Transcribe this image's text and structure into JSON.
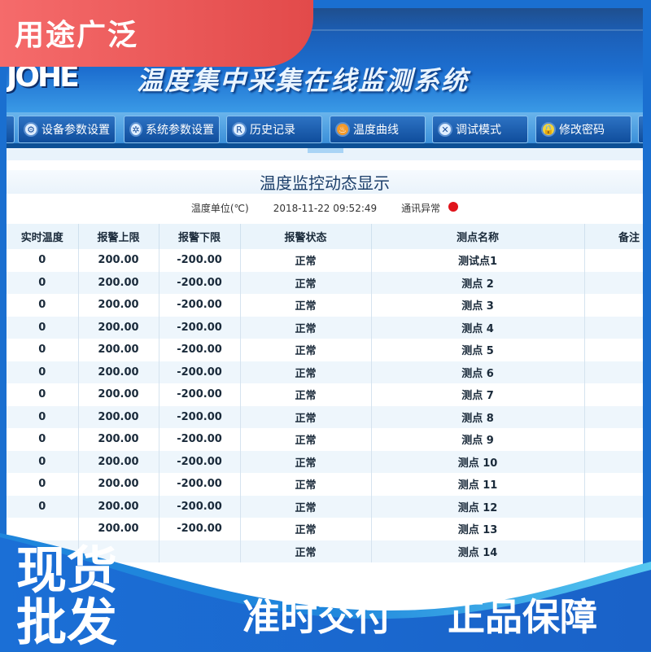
{
  "header": {
    "logo": "JOHE",
    "title": "温度集中采集在线监测系统"
  },
  "nav": [
    {
      "label": "设备参数设置",
      "icon": "gear-icon"
    },
    {
      "label": "系统参数设置",
      "icon": "settings-icon"
    },
    {
      "label": "历史记录",
      "icon": "registered-icon"
    },
    {
      "label": "温度曲线",
      "icon": "flame-icon"
    },
    {
      "label": "调试模式",
      "icon": "tools-icon"
    },
    {
      "label": "修改密码",
      "icon": "lock-icon"
    }
  ],
  "panel": {
    "title": "温度监控动态显示",
    "unit": "温度单位(℃)",
    "datetime": "2018-11-22 09:52:49",
    "comm_status": "通讯异常",
    "comm_color": "#e0131b"
  },
  "table": {
    "columns": [
      "实时温度",
      "报警上限",
      "报警下限",
      "报警状态",
      "测点名称",
      "备注"
    ],
    "rows": [
      [
        "0",
        "200.00",
        "-200.00",
        "正常",
        "测试点1",
        ""
      ],
      [
        "0",
        "200.00",
        "-200.00",
        "正常",
        "测点 2",
        ""
      ],
      [
        "0",
        "200.00",
        "-200.00",
        "正常",
        "测点 3",
        ""
      ],
      [
        "0",
        "200.00",
        "-200.00",
        "正常",
        "测点 4",
        ""
      ],
      [
        "0",
        "200.00",
        "-200.00",
        "正常",
        "测点 5",
        ""
      ],
      [
        "0",
        "200.00",
        "-200.00",
        "正常",
        "测点 6",
        ""
      ],
      [
        "0",
        "200.00",
        "-200.00",
        "正常",
        "测点 7",
        ""
      ],
      [
        "0",
        "200.00",
        "-200.00",
        "正常",
        "测点 8",
        ""
      ],
      [
        "0",
        "200.00",
        "-200.00",
        "正常",
        "测点 9",
        ""
      ],
      [
        "0",
        "200.00",
        "-200.00",
        "正常",
        "测点 10",
        ""
      ],
      [
        "0",
        "200.00",
        "-200.00",
        "正常",
        "测点 11",
        ""
      ],
      [
        "0",
        "200.00",
        "-200.00",
        "正常",
        "测点 12",
        ""
      ],
      [
        "",
        "200.00",
        "-200.00",
        "正常",
        "测点 13",
        ""
      ],
      [
        "",
        "",
        "",
        "正常",
        "测点 14",
        ""
      ]
    ]
  },
  "overlay": {
    "tag": "用途广泛",
    "left_line1": "现货",
    "left_line2": "批发",
    "slogan1": "准时交付",
    "slogan2": "正品保障"
  }
}
